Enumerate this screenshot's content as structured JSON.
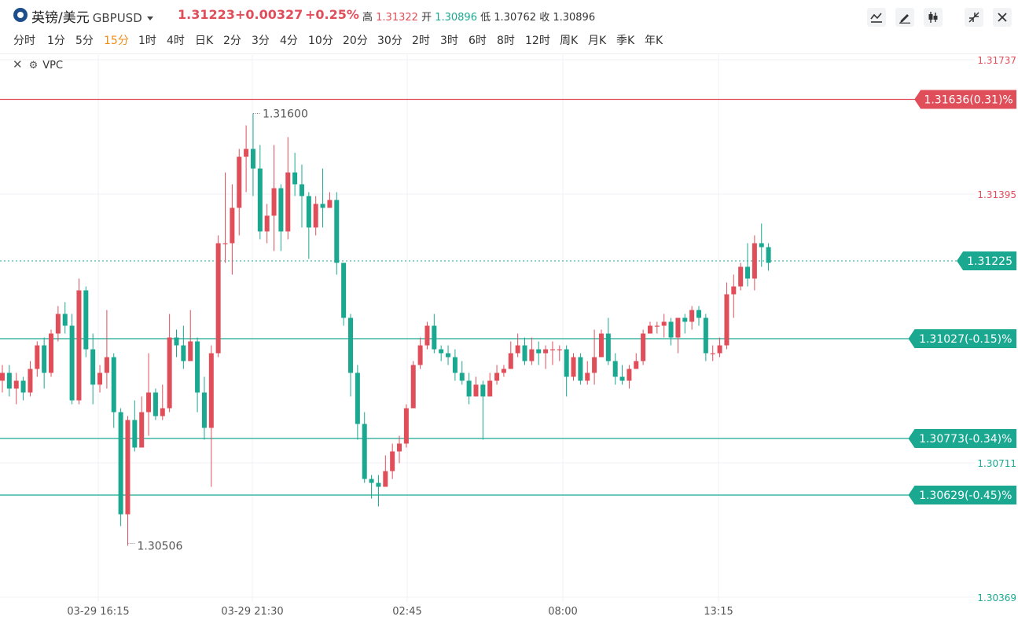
{
  "header": {
    "name": "英镑/美元",
    "symbol": "GBPUSD",
    "last_price": "1.31223",
    "change": "+0.00327",
    "change_pct": "+0.25%",
    "high_label": "高",
    "high": "1.31322",
    "open_label": "开",
    "open": "1.30896",
    "low_label": "低",
    "low": "1.30762",
    "close_label": "收",
    "close": "1.30896"
  },
  "toolbar": {
    "icons": [
      "line-chart-icon",
      "draw-pen-icon",
      "candlestick-icon",
      "collapse-icon",
      "close-icon"
    ]
  },
  "periods": [
    "分时",
    "1分",
    "5分",
    "15分",
    "1时",
    "4时",
    "日K",
    "2分",
    "3分",
    "4分",
    "10分",
    "20分",
    "30分",
    "2时",
    "3时",
    "6时",
    "8时",
    "12时",
    "周K",
    "月K",
    "季K",
    "年K"
  ],
  "active_period": "15分",
  "indicator": {
    "label": "VPC"
  },
  "colors": {
    "up": "#e04e5a",
    "down": "#1aa890",
    "accent": "#f28c1b"
  },
  "chart_data": {
    "type": "candlestick",
    "ylim": [
      1.30369,
      1.31737
    ],
    "y_ticks": [
      "1.31737",
      "1.31395",
      "1.30711",
      "1.30369"
    ],
    "x_ticks": [
      "03-29 16:15",
      "03-29 21:30",
      "02:45",
      "08:00",
      "13:15"
    ],
    "annotations": {
      "high": "1.31600",
      "low": "1.30506"
    },
    "current_price_label": "1.31225",
    "price_lines": [
      {
        "label": "1.31636(0.31)%",
        "value": 1.31636,
        "color": "#e04e5a"
      },
      {
        "label": "1.31027(-0.15)%",
        "value": 1.31027,
        "color": "#1aa890"
      },
      {
        "label": "1.30773(-0.34)%",
        "value": 1.30773,
        "color": "#1aa890"
      },
      {
        "label": "1.30629(-0.45)%",
        "value": 1.30629,
        "color": "#1aa890"
      }
    ],
    "candles": [
      [
        1.3092,
        1.3094,
        1.3089,
        1.3096
      ],
      [
        1.3094,
        1.309,
        1.3088,
        1.3096
      ],
      [
        1.309,
        1.3092,
        1.3086,
        1.3094
      ],
      [
        1.3092,
        1.3089,
        1.3087,
        1.3093
      ],
      [
        1.3089,
        1.3095,
        1.3088,
        1.3097
      ],
      [
        1.3095,
        1.3101,
        1.3093,
        1.3102
      ],
      [
        1.3101,
        1.3094,
        1.309,
        1.3103
      ],
      [
        1.3094,
        1.3104,
        1.3093,
        1.3105
      ],
      [
        1.3104,
        1.3109,
        1.3102,
        1.3111
      ],
      [
        1.3109,
        1.3106,
        1.3104,
        1.3112
      ],
      [
        1.3106,
        1.3087,
        1.3086,
        1.3109
      ],
      [
        1.3087,
        1.3115,
        1.3086,
        1.3118
      ],
      [
        1.3115,
        1.31,
        1.3098,
        1.3116
      ],
      [
        1.31,
        1.3091,
        1.3086,
        1.3104
      ],
      [
        1.3091,
        1.3094,
        1.3089,
        1.3096
      ],
      [
        1.3094,
        1.3098,
        1.309,
        1.311
      ],
      [
        1.3098,
        1.3084,
        1.308,
        1.3099
      ],
      [
        1.3084,
        1.3058,
        1.3055,
        1.3085
      ],
      [
        1.3058,
        1.3082,
        1.305,
        1.3083
      ],
      [
        1.3082,
        1.3075,
        1.3074,
        1.3087
      ],
      [
        1.3075,
        1.3084,
        1.3076,
        1.3088
      ],
      [
        1.3084,
        1.3089,
        1.3078,
        1.3099
      ],
      [
        1.3089,
        1.3083,
        1.3082,
        1.309
      ],
      [
        1.3083,
        1.3085,
        1.3082,
        1.3091
      ],
      [
        1.3085,
        1.3103,
        1.3084,
        1.3109
      ],
      [
        1.3103,
        1.3101,
        1.3098,
        1.3105
      ],
      [
        1.3101,
        1.3097,
        1.3095,
        1.3106
      ],
      [
        1.3097,
        1.3102,
        1.3098,
        1.311
      ],
      [
        1.3102,
        1.3089,
        1.3084,
        1.3103
      ],
      [
        1.3089,
        1.308,
        1.3077,
        1.3093
      ],
      [
        1.308,
        1.3099,
        1.3065,
        1.3101
      ],
      [
        1.3099,
        1.3127,
        1.3098,
        1.3129
      ],
      [
        1.3127,
        1.3127,
        1.3122,
        1.3145
      ],
      [
        1.3127,
        1.3136,
        1.3119,
        1.3142
      ],
      [
        1.3136,
        1.3149,
        1.3129,
        1.3151
      ],
      [
        1.3149,
        1.3151,
        1.314,
        1.3157
      ],
      [
        1.3151,
        1.3146,
        1.3139,
        1.316
      ],
      [
        1.3146,
        1.313,
        1.3128,
        1.3152
      ],
      [
        1.313,
        1.3134,
        1.3127,
        1.3137
      ],
      [
        1.3134,
        1.3141,
        1.3125,
        1.3152
      ],
      [
        1.3141,
        1.313,
        1.3125,
        1.3142
      ],
      [
        1.313,
        1.3145,
        1.3128,
        1.3154
      ],
      [
        1.3145,
        1.3142,
        1.3139,
        1.315
      ],
      [
        1.3142,
        1.3139,
        1.3131,
        1.3147
      ],
      [
        1.3139,
        1.3131,
        1.3123,
        1.314
      ],
      [
        1.3131,
        1.3137,
        1.3129,
        1.3139
      ],
      [
        1.3137,
        1.3136,
        1.3131,
        1.3146
      ],
      [
        1.3136,
        1.3138,
        1.3136,
        1.314
      ],
      [
        1.3138,
        1.3122,
        1.3119,
        1.314
      ],
      [
        1.3122,
        1.3108,
        1.3106,
        1.3122
      ],
      [
        1.3108,
        1.3094,
        1.3088,
        1.3109
      ],
      [
        1.3094,
        1.3081,
        1.3077,
        1.3096
      ],
      [
        1.3081,
        1.3067,
        1.3066,
        1.3084
      ],
      [
        1.3067,
        1.3066,
        1.3062,
        1.3068
      ],
      [
        1.3066,
        1.3065,
        1.306,
        1.3068
      ],
      [
        1.3065,
        1.3069,
        1.3065,
        1.3073
      ],
      [
        1.3069,
        1.3074,
        1.3067,
        1.3076
      ],
      [
        1.3074,
        1.3076,
        1.3071,
        1.3078
      ],
      [
        1.3076,
        1.3085,
        1.3075,
        1.3086
      ],
      [
        1.3085,
        1.3096,
        1.3085,
        1.3097
      ],
      [
        1.3096,
        1.3101,
        1.3095,
        1.3103
      ],
      [
        1.3101,
        1.3106,
        1.31,
        1.3107
      ],
      [
        1.3106,
        1.31,
        1.3099,
        1.3109
      ],
      [
        1.31,
        1.3099,
        1.3097,
        1.3101
      ],
      [
        1.3099,
        1.3098,
        1.3096,
        1.3101
      ],
      [
        1.3098,
        1.3094,
        1.3092,
        1.31
      ],
      [
        1.3094,
        1.3092,
        1.3091,
        1.3097
      ],
      [
        1.3092,
        1.3088,
        1.3086,
        1.3094
      ],
      [
        1.3088,
        1.3091,
        1.3088,
        1.3093
      ],
      [
        1.3091,
        1.3088,
        1.3077,
        1.3092
      ],
      [
        1.3088,
        1.3092,
        1.3088,
        1.3094
      ],
      [
        1.3092,
        1.3094,
        1.3091,
        1.3096
      ],
      [
        1.3094,
        1.3095,
        1.3093,
        1.3096
      ],
      [
        1.3095,
        1.3099,
        1.3095,
        1.3102
      ],
      [
        1.3099,
        1.3101,
        1.3098,
        1.3104
      ],
      [
        1.3101,
        1.3097,
        1.3096,
        1.3103
      ],
      [
        1.3097,
        1.31,
        1.3096,
        1.3103
      ],
      [
        1.31,
        1.3099,
        1.3096,
        1.3102
      ],
      [
        1.3099,
        1.31,
        1.3095,
        1.3101
      ],
      [
        1.31,
        1.31,
        1.3096,
        1.3102
      ],
      [
        1.31,
        1.31,
        1.3097,
        1.3101
      ],
      [
        1.31,
        1.3093,
        1.3088,
        1.3101
      ],
      [
        1.3093,
        1.3098,
        1.3092,
        1.3099
      ],
      [
        1.3098,
        1.3092,
        1.3091,
        1.3099
      ],
      [
        1.3092,
        1.3094,
        1.3091,
        1.3097
      ],
      [
        1.3094,
        1.3098,
        1.3091,
        1.3105
      ],
      [
        1.3098,
        1.3104,
        1.3098,
        1.3105
      ],
      [
        1.3104,
        1.3097,
        1.3096,
        1.3108
      ],
      [
        1.3097,
        1.3093,
        1.3091,
        1.3099
      ],
      [
        1.3093,
        1.3092,
        1.3091,
        1.3096
      ],
      [
        1.3092,
        1.3095,
        1.309,
        1.3096
      ],
      [
        1.3095,
        1.3097,
        1.3095,
        1.3099
      ],
      [
        1.3097,
        1.3104,
        1.3096,
        1.3105
      ],
      [
        1.3104,
        1.3106,
        1.3104,
        1.3107
      ],
      [
        1.3106,
        1.3106,
        1.3104,
        1.3107
      ],
      [
        1.3106,
        1.3107,
        1.3103,
        1.3109
      ],
      [
        1.3107,
        1.3103,
        1.3101,
        1.3108
      ],
      [
        1.3103,
        1.3108,
        1.3099,
        1.3108
      ],
      [
        1.3108,
        1.3107,
        1.3104,
        1.3109
      ],
      [
        1.3107,
        1.311,
        1.3105,
        1.3111
      ],
      [
        1.311,
        1.3108,
        1.3106,
        1.3111
      ],
      [
        1.3108,
        1.3099,
        1.3097,
        1.3109
      ],
      [
        1.3099,
        1.3099,
        1.3097,
        1.3101
      ],
      [
        1.3099,
        1.3101,
        1.3098,
        1.3103
      ],
      [
        1.3101,
        1.3114,
        1.31,
        1.3117
      ],
      [
        1.3114,
        1.3116,
        1.3108,
        1.3119
      ],
      [
        1.3116,
        1.3121,
        1.3115,
        1.3122
      ],
      [
        1.3121,
        1.3118,
        1.3116,
        1.3127
      ],
      [
        1.3118,
        1.3127,
        1.3115,
        1.3129
      ],
      [
        1.3127,
        1.3126,
        1.3121,
        1.3132
      ],
      [
        1.3126,
        1.3122,
        1.312,
        1.3127
      ]
    ]
  }
}
